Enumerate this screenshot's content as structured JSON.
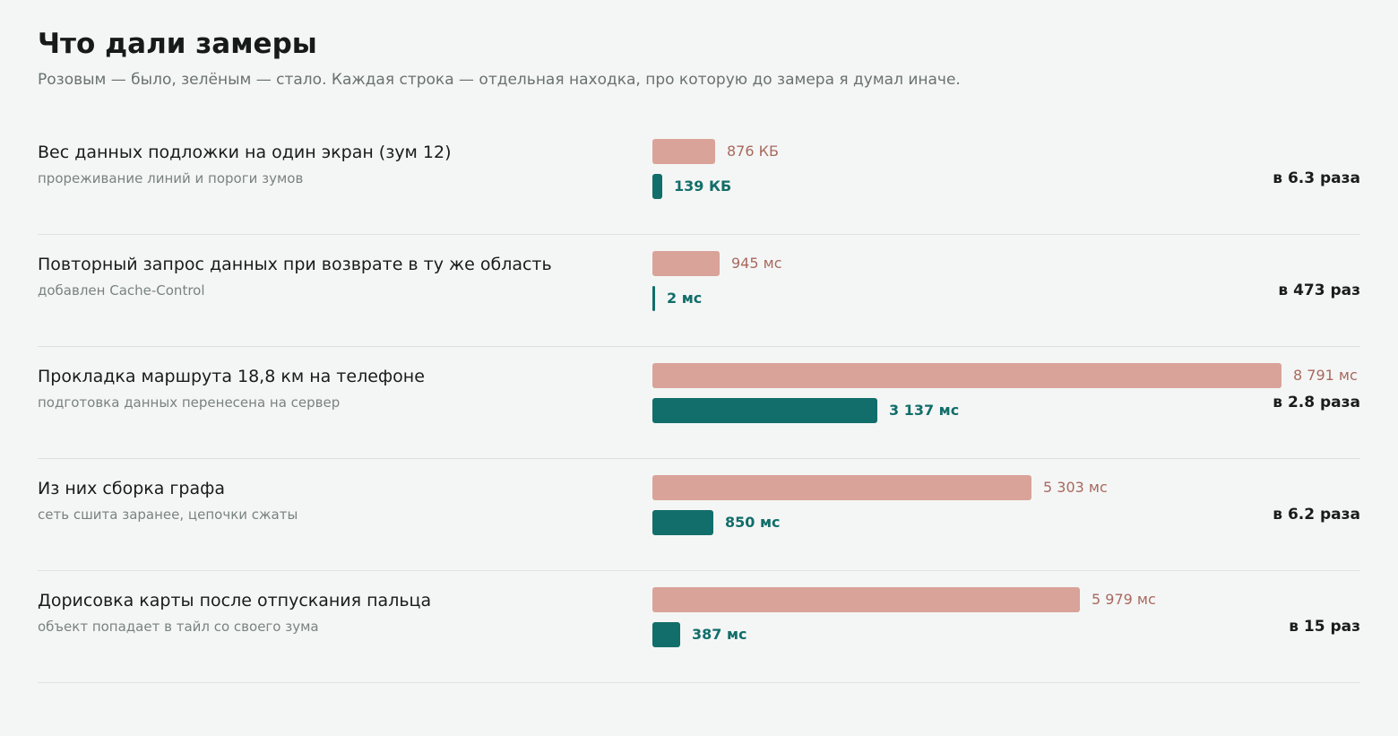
{
  "title": "Что дали замеры",
  "subtitle": "Розовым — было, зелёным — стало. Каждая строка — отдельная находка, про которую до замера я думал иначе.",
  "colors": {
    "before": "#d9a39a",
    "after": "#126e6a"
  },
  "chart_data": {
    "type": "bar",
    "series": [
      {
        "key": "before"
      },
      {
        "key": "after"
      }
    ],
    "rows": [
      {
        "title": "Вес данных подложки на один экран (зум 12)",
        "note": "прореживание линий и пороги зумов",
        "before": 876,
        "after": 139,
        "before_label": "876 КБ",
        "after_label": "139 КБ",
        "ratio": "в 6.3 раза",
        "scale_max": 8791
      },
      {
        "title": "Повторный запрос данных при возврате в ту же область",
        "note": "добавлен Cache-Control",
        "before": 945,
        "after": 2,
        "before_label": "945 мс",
        "after_label": "2 мс",
        "ratio": "в 473 раз",
        "scale_max": 8791
      },
      {
        "title": "Прокладка маршрута 18,8 км на телефоне",
        "note": "подготовка данных перенесена на сервер",
        "before": 8791,
        "after": 3137,
        "before_label": "8 791 мс",
        "after_label": "3 137 мс",
        "ratio": "в 2.8 раза",
        "scale_max": 8791
      },
      {
        "title": "Из них сборка графа",
        "note": "сеть сшита заранее, цепочки сжаты",
        "before": 5303,
        "after": 850,
        "before_label": "5 303 мс",
        "after_label": "850 мс",
        "ratio": "в 6.2 раза",
        "scale_max": 8791
      },
      {
        "title": "Дорисовка карты после отпускания пальца",
        "note": "объект попадает в тайл со своего зума",
        "before": 5979,
        "after": 387,
        "before_label": "5 979 мс",
        "after_label": "387 мс",
        "ratio": "в 15 раз",
        "scale_max": 8791
      }
    ]
  }
}
